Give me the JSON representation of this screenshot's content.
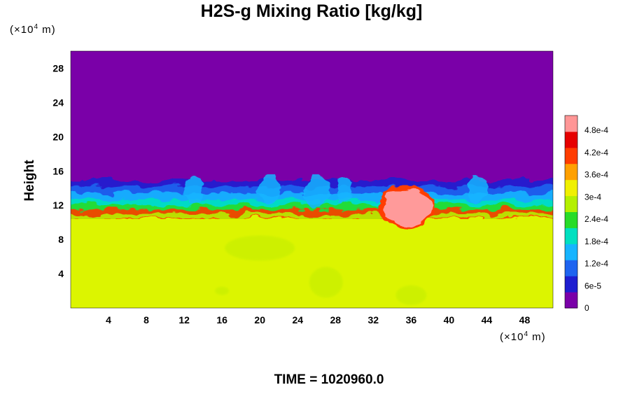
{
  "chart_data": {
    "type": "heatmap",
    "title": "H2S-g Mixing Ratio [kg/kg]",
    "ylabel": "Height",
    "xlabel": "",
    "x_multiplier": "(×10",
    "x_multiplier_exp": "4",
    "x_multiplier_unit": " m)",
    "y_multiplier": "(×10",
    "y_multiplier_exp": "4",
    "y_multiplier_unit": " m)",
    "xlim": [
      0,
      51
    ],
    "ylim": [
      0,
      30
    ],
    "x_ticks": [
      "4",
      "8",
      "12",
      "16",
      "20",
      "24",
      "28",
      "32",
      "36",
      "40",
      "44",
      "48"
    ],
    "y_ticks": [
      "4",
      "8",
      "12",
      "16",
      "20",
      "24",
      "28"
    ],
    "colorbar": {
      "range": [
        0,
        0.00052
      ],
      "labels": [
        "0",
        "6e-5",
        "1.2e-4",
        "1.8e-4",
        "2.4e-4",
        "3e-4",
        "3.6e-4",
        "4.2e-4",
        "4.8e-4"
      ],
      "colors": [
        "#7a00a8",
        "#1e1ed0",
        "#1e64f0",
        "#16b4ff",
        "#00e0c0",
        "#28dc28",
        "#b4f000",
        "#f0f000",
        "#ffa000",
        "#ff3c00",
        "#e60000",
        "#ff9696"
      ]
    },
    "fields": [
      {
        "region": "upper layer",
        "y_range": [
          15,
          30
        ],
        "value": "0",
        "color": "#7a00a8"
      },
      {
        "region": "lower layer",
        "y_range": [
          0,
          11
        ],
        "value": "~3.5e-4",
        "color": "#dcf500"
      },
      {
        "region": "high-concentration patch",
        "x_range": [
          33,
          38
        ],
        "y_range": [
          9.5,
          14
        ],
        "value": ">4.8e-4",
        "color": "#ff9a9a"
      }
    ]
  },
  "footer": {
    "time": "TIME = 1020960.0"
  }
}
